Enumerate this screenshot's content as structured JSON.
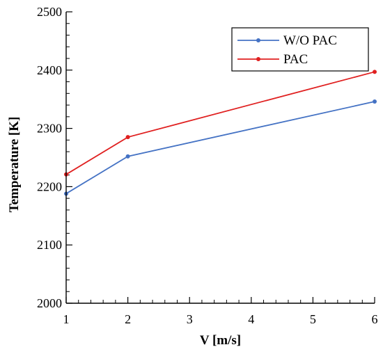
{
  "chart_data": {
    "type": "line",
    "title": "",
    "xlabel": "V [m/s]",
    "ylabel": "Temperature [K]",
    "xlim": [
      1,
      6
    ],
    "ylim": [
      2000,
      2500
    ],
    "xticks": [
      1,
      2,
      3,
      4,
      5,
      6
    ],
    "yticks": [
      2000,
      2100,
      2200,
      2300,
      2400,
      2500
    ],
    "grid": false,
    "legend_position": "top-right",
    "x": [
      1,
      2,
      6
    ],
    "series": [
      {
        "name": "W/O PAC",
        "color": "#4472c4",
        "values": [
          2188,
          2252,
          2346
        ]
      },
      {
        "name": "PAC",
        "color": "#e02020",
        "values": [
          2221,
          2285,
          2397
        ]
      }
    ]
  }
}
